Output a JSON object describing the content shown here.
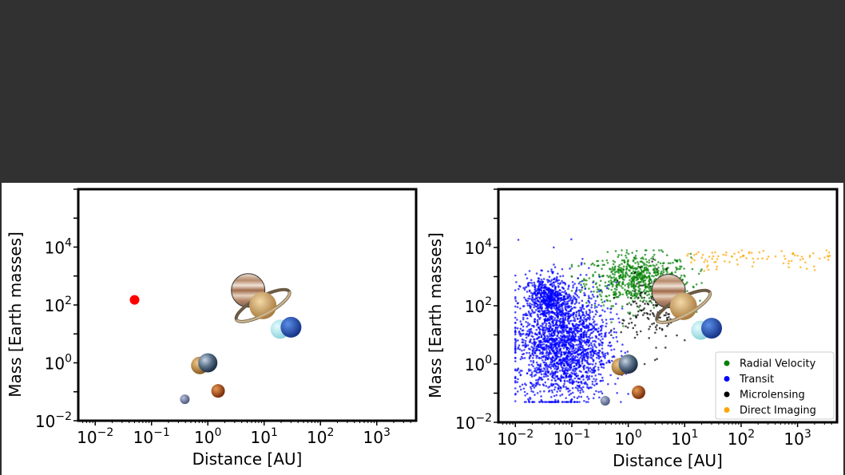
{
  "colors": {
    "background_top": "#313131",
    "hot_jupiter": "#ff0000",
    "radial_velocity": "#008000",
    "transit": "#0000ff",
    "microlensing": "#000000",
    "direct_imaging": "#ffa500"
  },
  "chart_data": [
    {
      "type": "scatter",
      "xscale": "log",
      "yscale": "log",
      "xlabel": "Distance [AU]",
      "ylabel": "Mass [Earth masses]",
      "xlim": [
        0.005,
        5000
      ],
      "ylim": [
        0.01,
        1000000
      ],
      "xticks": [
        "10^-2",
        "10^-1",
        "10^0",
        "10^1",
        "10^2",
        "10^3"
      ],
      "yticks": [
        "10^-2",
        "10^0",
        "10^2",
        "10^4"
      ],
      "legend": null,
      "series": [
        {
          "name": "",
          "color": "#ff0000",
          "points": [
            [
              0.05,
              150
            ]
          ]
        }
      ],
      "solar_system_planets": [
        {
          "icon": "mercury-icon",
          "x": 0.39,
          "y": 0.055
        },
        {
          "icon": "venus-icon",
          "x": 0.72,
          "y": 0.815
        },
        {
          "icon": "earth-icon",
          "x": 1.0,
          "y": 1.0
        },
        {
          "icon": "mars-icon",
          "x": 1.52,
          "y": 0.107
        },
        {
          "icon": "jupiter-icon",
          "x": 5.2,
          "y": 318
        },
        {
          "icon": "saturn-icon",
          "x": 9.5,
          "y": 95
        },
        {
          "icon": "uranus-icon",
          "x": 19.2,
          "y": 14.5
        },
        {
          "icon": "neptune-icon",
          "x": 30,
          "y": 17
        }
      ]
    },
    {
      "type": "scatter",
      "xscale": "log",
      "yscale": "log",
      "xlabel": "Distance [AU]",
      "ylabel": "Mass [Earth masses]",
      "xlim": [
        0.005,
        5000
      ],
      "ylim": [
        0.01,
        1000000
      ],
      "xticks": [
        "10^-2",
        "10^-1",
        "10^0",
        "10^1",
        "10^2",
        "10^3"
      ],
      "yticks": [
        "10^-2",
        "10^0",
        "10^2",
        "10^4"
      ],
      "legend": "lower-right",
      "series": [
        {
          "name": "Radial Velocity",
          "color": "#008000",
          "x_range": [
            0.1,
            20
          ],
          "y_range": [
            20,
            8000
          ],
          "center": [
            1.5,
            800
          ]
        },
        {
          "name": "Transit",
          "color": "#0000ff",
          "x_range": [
            0.01,
            1
          ],
          "y_range": [
            0.05,
            50000
          ],
          "center": [
            0.07,
            5
          ]
        },
        {
          "name": "Microlensing",
          "color": "#000000",
          "x_range": [
            0.5,
            10
          ],
          "y_range": [
            1,
            10000
          ],
          "center": [
            2.5,
            60
          ]
        },
        {
          "name": "Direct Imaging",
          "color": "#ffa500",
          "x_range": [
            10,
            4000
          ],
          "y_range": [
            1000,
            8000
          ],
          "center": [
            200,
            4000
          ]
        }
      ],
      "solar_system_planets": [
        {
          "icon": "mercury-icon",
          "x": 0.39,
          "y": 0.055
        },
        {
          "icon": "venus-icon",
          "x": 0.72,
          "y": 0.815
        },
        {
          "icon": "earth-icon",
          "x": 1.0,
          "y": 1.0
        },
        {
          "icon": "mars-icon",
          "x": 1.52,
          "y": 0.107
        },
        {
          "icon": "jupiter-icon",
          "x": 5.2,
          "y": 318
        },
        {
          "icon": "saturn-icon",
          "x": 9.5,
          "y": 95
        },
        {
          "icon": "uranus-icon",
          "x": 19.2,
          "y": 14.5
        },
        {
          "icon": "neptune-icon",
          "x": 30,
          "y": 17
        }
      ]
    }
  ]
}
